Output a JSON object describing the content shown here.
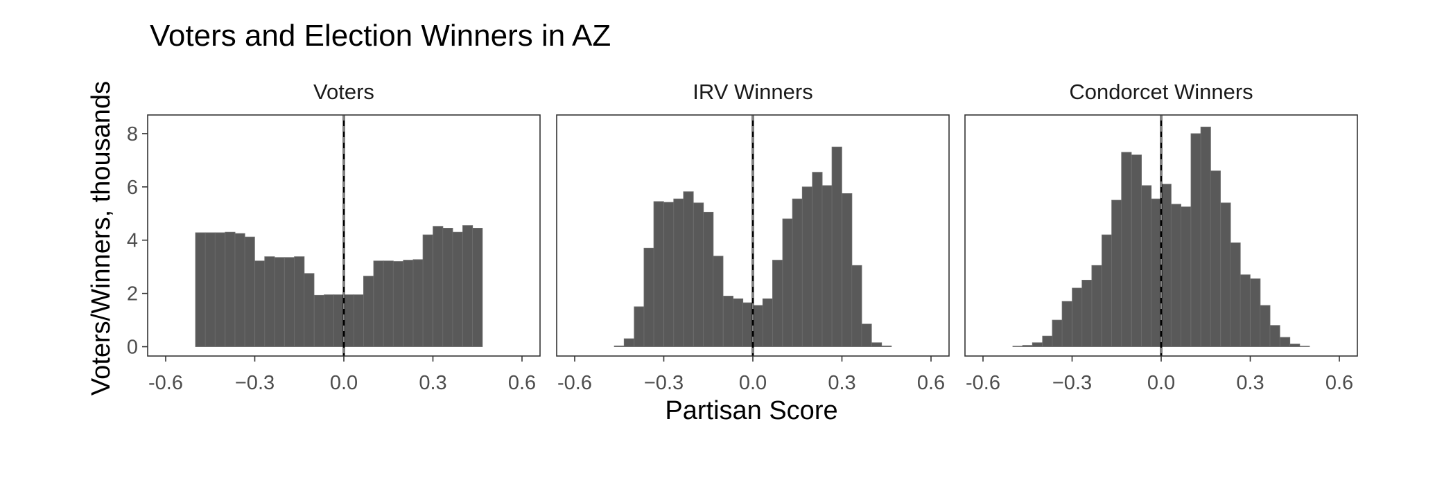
{
  "chart_data": {
    "type": "bar",
    "title": "Voters and Election Winners in AZ",
    "xlabel": "Partisan Score",
    "ylabel": "Voters/Winners, thousands",
    "xlim": [
      -0.6,
      0.6
    ],
    "ylim": [
      0,
      8
    ],
    "x_ticks": [
      -0.6,
      -0.3,
      0.0,
      0.3,
      0.6
    ],
    "x_tick_labels": [
      "-0.6",
      "−0.3",
      "0.0",
      "0.3",
      "0.6"
    ],
    "y_ticks": [
      0,
      2,
      4,
      6,
      8
    ],
    "y_tick_labels": [
      "0",
      "2",
      "4",
      "6",
      "8"
    ],
    "bin_width": 0.0333,
    "vertical_line_x": 0.0,
    "grid": false,
    "bar_color": "#595959",
    "bar_edge_color": "#6e6e6e",
    "panels": [
      {
        "name": "Voters",
        "bins": [
          {
            "x": -0.483,
            "y": 4.28
          },
          {
            "x": -0.45,
            "y": 4.28
          },
          {
            "x": -0.417,
            "y": 4.28
          },
          {
            "x": -0.383,
            "y": 4.3
          },
          {
            "x": -0.35,
            "y": 4.25
          },
          {
            "x": -0.317,
            "y": 4.12
          },
          {
            "x": -0.283,
            "y": 3.22
          },
          {
            "x": -0.25,
            "y": 3.38
          },
          {
            "x": -0.217,
            "y": 3.35
          },
          {
            "x": -0.183,
            "y": 3.35
          },
          {
            "x": -0.15,
            "y": 3.38
          },
          {
            "x": -0.117,
            "y": 2.75
          },
          {
            "x": -0.083,
            "y": 1.93
          },
          {
            "x": -0.05,
            "y": 1.95
          },
          {
            "x": -0.017,
            "y": 1.95
          },
          {
            "x": 0.017,
            "y": 1.95
          },
          {
            "x": 0.05,
            "y": 1.95
          },
          {
            "x": 0.083,
            "y": 2.65
          },
          {
            "x": 0.117,
            "y": 3.22
          },
          {
            "x": 0.15,
            "y": 3.22
          },
          {
            "x": 0.183,
            "y": 3.2
          },
          {
            "x": 0.217,
            "y": 3.25
          },
          {
            "x": 0.25,
            "y": 3.27
          },
          {
            "x": 0.283,
            "y": 4.2
          },
          {
            "x": 0.317,
            "y": 4.52
          },
          {
            "x": 0.35,
            "y": 4.45
          },
          {
            "x": 0.383,
            "y": 4.3
          },
          {
            "x": 0.417,
            "y": 4.55
          },
          {
            "x": 0.45,
            "y": 4.45
          }
        ]
      },
      {
        "name": "IRV Winners",
        "bins": [
          {
            "x": -0.45,
            "y": 0.03
          },
          {
            "x": -0.417,
            "y": 0.3
          },
          {
            "x": -0.383,
            "y": 1.5
          },
          {
            "x": -0.35,
            "y": 3.7
          },
          {
            "x": -0.317,
            "y": 5.45
          },
          {
            "x": -0.283,
            "y": 5.42
          },
          {
            "x": -0.25,
            "y": 5.55
          },
          {
            "x": -0.217,
            "y": 5.82
          },
          {
            "x": -0.183,
            "y": 5.4
          },
          {
            "x": -0.15,
            "y": 5.05
          },
          {
            "x": -0.117,
            "y": 3.4
          },
          {
            "x": -0.083,
            "y": 1.9
          },
          {
            "x": -0.05,
            "y": 1.8
          },
          {
            "x": -0.017,
            "y": 1.65
          },
          {
            "x": 0.017,
            "y": 1.55
          },
          {
            "x": 0.05,
            "y": 1.8
          },
          {
            "x": 0.083,
            "y": 3.25
          },
          {
            "x": 0.117,
            "y": 4.8
          },
          {
            "x": 0.15,
            "y": 5.55
          },
          {
            "x": 0.183,
            "y": 6.0
          },
          {
            "x": 0.217,
            "y": 6.55
          },
          {
            "x": 0.25,
            "y": 6.05
          },
          {
            "x": 0.283,
            "y": 7.5
          },
          {
            "x": 0.317,
            "y": 5.75
          },
          {
            "x": 0.35,
            "y": 3.05
          },
          {
            "x": 0.383,
            "y": 0.85
          },
          {
            "x": 0.417,
            "y": 0.15
          },
          {
            "x": 0.45,
            "y": 0.03
          }
        ]
      },
      {
        "name": "Condorcet Winners",
        "bins": [
          {
            "x": -0.483,
            "y": 0.02
          },
          {
            "x": -0.45,
            "y": 0.05
          },
          {
            "x": -0.417,
            "y": 0.15
          },
          {
            "x": -0.383,
            "y": 0.4
          },
          {
            "x": -0.35,
            "y": 1.0
          },
          {
            "x": -0.317,
            "y": 1.7
          },
          {
            "x": -0.283,
            "y": 2.2
          },
          {
            "x": -0.25,
            "y": 2.5
          },
          {
            "x": -0.217,
            "y": 3.05
          },
          {
            "x": -0.183,
            "y": 4.2
          },
          {
            "x": -0.15,
            "y": 5.5
          },
          {
            "x": -0.117,
            "y": 7.3
          },
          {
            "x": -0.083,
            "y": 7.2
          },
          {
            "x": -0.05,
            "y": 6.05
          },
          {
            "x": -0.017,
            "y": 5.55
          },
          {
            "x": 0.017,
            "y": 6.1
          },
          {
            "x": 0.05,
            "y": 5.35
          },
          {
            "x": 0.083,
            "y": 5.25
          },
          {
            "x": 0.117,
            "y": 8.0
          },
          {
            "x": 0.15,
            "y": 8.25
          },
          {
            "x": 0.183,
            "y": 6.6
          },
          {
            "x": 0.217,
            "y": 5.4
          },
          {
            "x": 0.25,
            "y": 3.9
          },
          {
            "x": 0.283,
            "y": 2.7
          },
          {
            "x": 0.317,
            "y": 2.55
          },
          {
            "x": 0.35,
            "y": 1.55
          },
          {
            "x": 0.383,
            "y": 0.8
          },
          {
            "x": 0.417,
            "y": 0.35
          },
          {
            "x": 0.45,
            "y": 0.1
          },
          {
            "x": 0.483,
            "y": 0.02
          }
        ]
      }
    ]
  }
}
